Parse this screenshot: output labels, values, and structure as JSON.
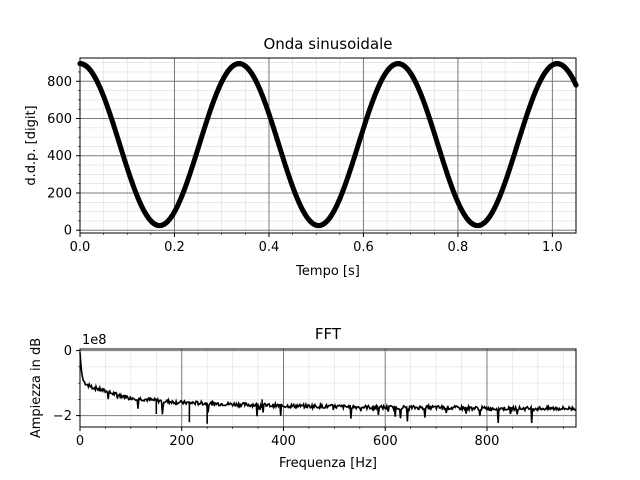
{
  "chart_data": [
    {
      "type": "scatter",
      "title": "Onda sinusoidale",
      "xlabel": "Tempo [s]",
      "ylabel": "d.d.p. [digit]",
      "xlim": [
        0,
        1.05
      ],
      "ylim": [
        -15,
        925
      ],
      "xticks": [
        0.0,
        0.2,
        0.4,
        0.6,
        0.8,
        1.0
      ],
      "xtick_labels": [
        "0.0",
        "0.2",
        "0.4",
        "0.6",
        "0.8",
        "1.0"
      ],
      "yticks": [
        0,
        200,
        400,
        600,
        800
      ],
      "ytick_labels": [
        "0",
        "200",
        "400",
        "600",
        "800"
      ],
      "grid": true,
      "minor_grid": true,
      "series": [
        {
          "signal": "cosine",
          "offset": 460,
          "amplitude": 435,
          "frequency_hz": 2.97,
          "phase": 0,
          "t_start": 0,
          "t_end": 1.05,
          "samples": 700,
          "color": "#000000"
        }
      ]
    },
    {
      "type": "line",
      "title": "FFT",
      "xlabel": "Frequenza [Hz]",
      "ylabel": "Ampiezza in dB",
      "offset_text": "1e8",
      "xlim": [
        0,
        975
      ],
      "ylim": [
        -2.35,
        0.05
      ],
      "xticks": [
        0,
        200,
        400,
        600,
        800
      ],
      "xtick_labels": [
        "0",
        "200",
        "400",
        "600",
        "800"
      ],
      "yticks": [
        0,
        -2
      ],
      "ytick_labels": [
        "0",
        "−2"
      ],
      "grid": true,
      "minor_grid": true,
      "series": [
        {
          "points": [
            [
              0,
              -0.05
            ],
            [
              2,
              -0.5
            ],
            [
              4,
              -0.75
            ],
            [
              6,
              -0.9
            ],
            [
              10,
              -1.0
            ],
            [
              20,
              -1.1
            ],
            [
              40,
              -1.2
            ],
            [
              60,
              -1.3
            ],
            [
              80,
              -1.38
            ],
            [
              100,
              -1.45
            ],
            [
              130,
              -1.5
            ],
            [
              160,
              -1.55
            ],
            [
              200,
              -1.6
            ],
            [
              250,
              -1.62
            ],
            [
              300,
              -1.65
            ],
            [
              400,
              -1.7
            ],
            [
              500,
              -1.72
            ],
            [
              600,
              -1.75
            ],
            [
              700,
              -1.75
            ],
            [
              800,
              -1.78
            ],
            [
              900,
              -1.78
            ],
            [
              975,
              -1.78
            ]
          ],
          "spikes": [
            [
              250,
              -2.25
            ],
            [
              215,
              -2.2
            ],
            [
              150,
              -1.95
            ],
            [
              358,
              -1.5
            ]
          ],
          "noise": 0.12,
          "color": "#000000"
        }
      ]
    }
  ]
}
